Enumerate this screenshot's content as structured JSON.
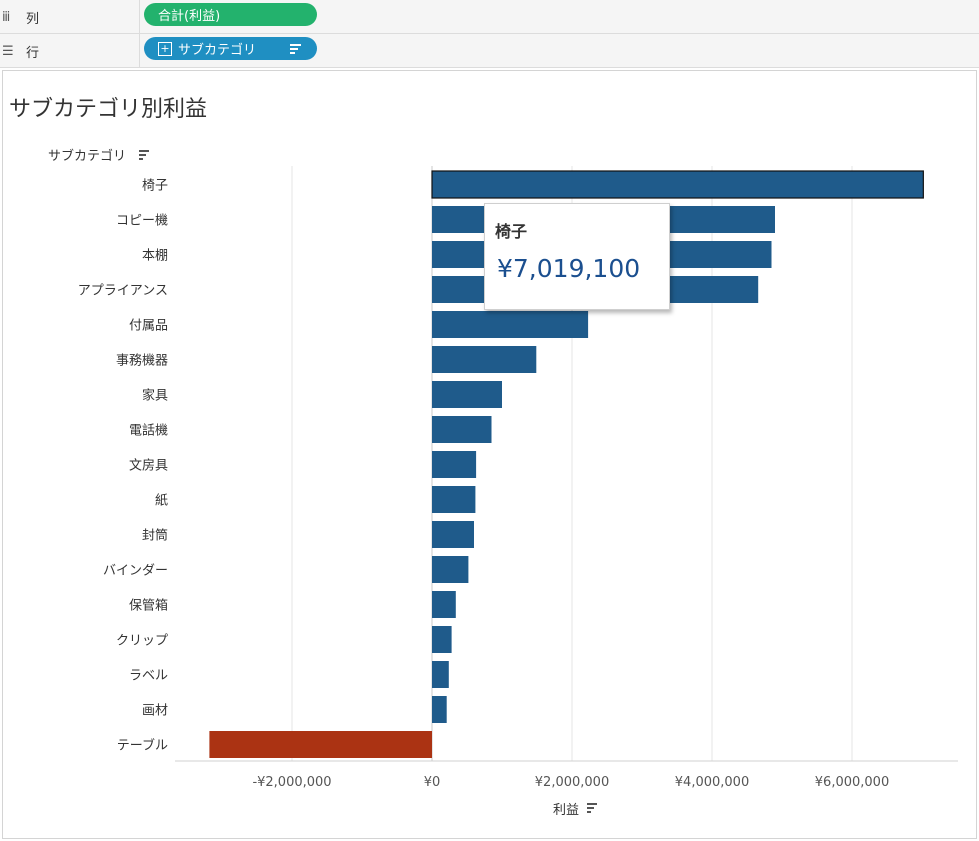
{
  "shelves": {
    "columns": {
      "label": "列",
      "pill": "合計(利益)"
    },
    "rows": {
      "label": "行",
      "pill": "サブカテゴリ"
    }
  },
  "colors": {
    "positive": "#1f5b8b",
    "negative": "#ab3313",
    "gridline": "#e6e6e6"
  },
  "chart_data": {
    "type": "bar",
    "orientation": "horizontal",
    "title": "サブカテゴリ別利益",
    "ylabel": "サブカテゴリ",
    "xlabel": "利益",
    "xlim": [
      -3100000,
      7300000
    ],
    "xticks": [
      -2000000,
      0,
      2000000,
      4000000,
      6000000
    ],
    "xtick_labels": [
      "-¥2,000,000",
      "¥0",
      "¥2,000,000",
      "¥4,000,000",
      "¥6,000,000"
    ],
    "categories": [
      "椅子",
      "コピー機",
      "本棚",
      "アプライアンス",
      "付属品",
      "事務機器",
      "家具",
      "電話機",
      "文房具",
      "紙",
      "封筒",
      "バインダー",
      "保管箱",
      "クリップ",
      "ラベル",
      "画材",
      "テーブル"
    ],
    "values": [
      7019100,
      4900000,
      4850000,
      4660000,
      2230000,
      1490000,
      1000000,
      850000,
      630000,
      620000,
      600000,
      520000,
      340000,
      280000,
      240000,
      210000,
      -3180000
    ],
    "highlighted": "椅子"
  },
  "tooltip": {
    "label": "椅子",
    "value": "¥7,019,100"
  }
}
